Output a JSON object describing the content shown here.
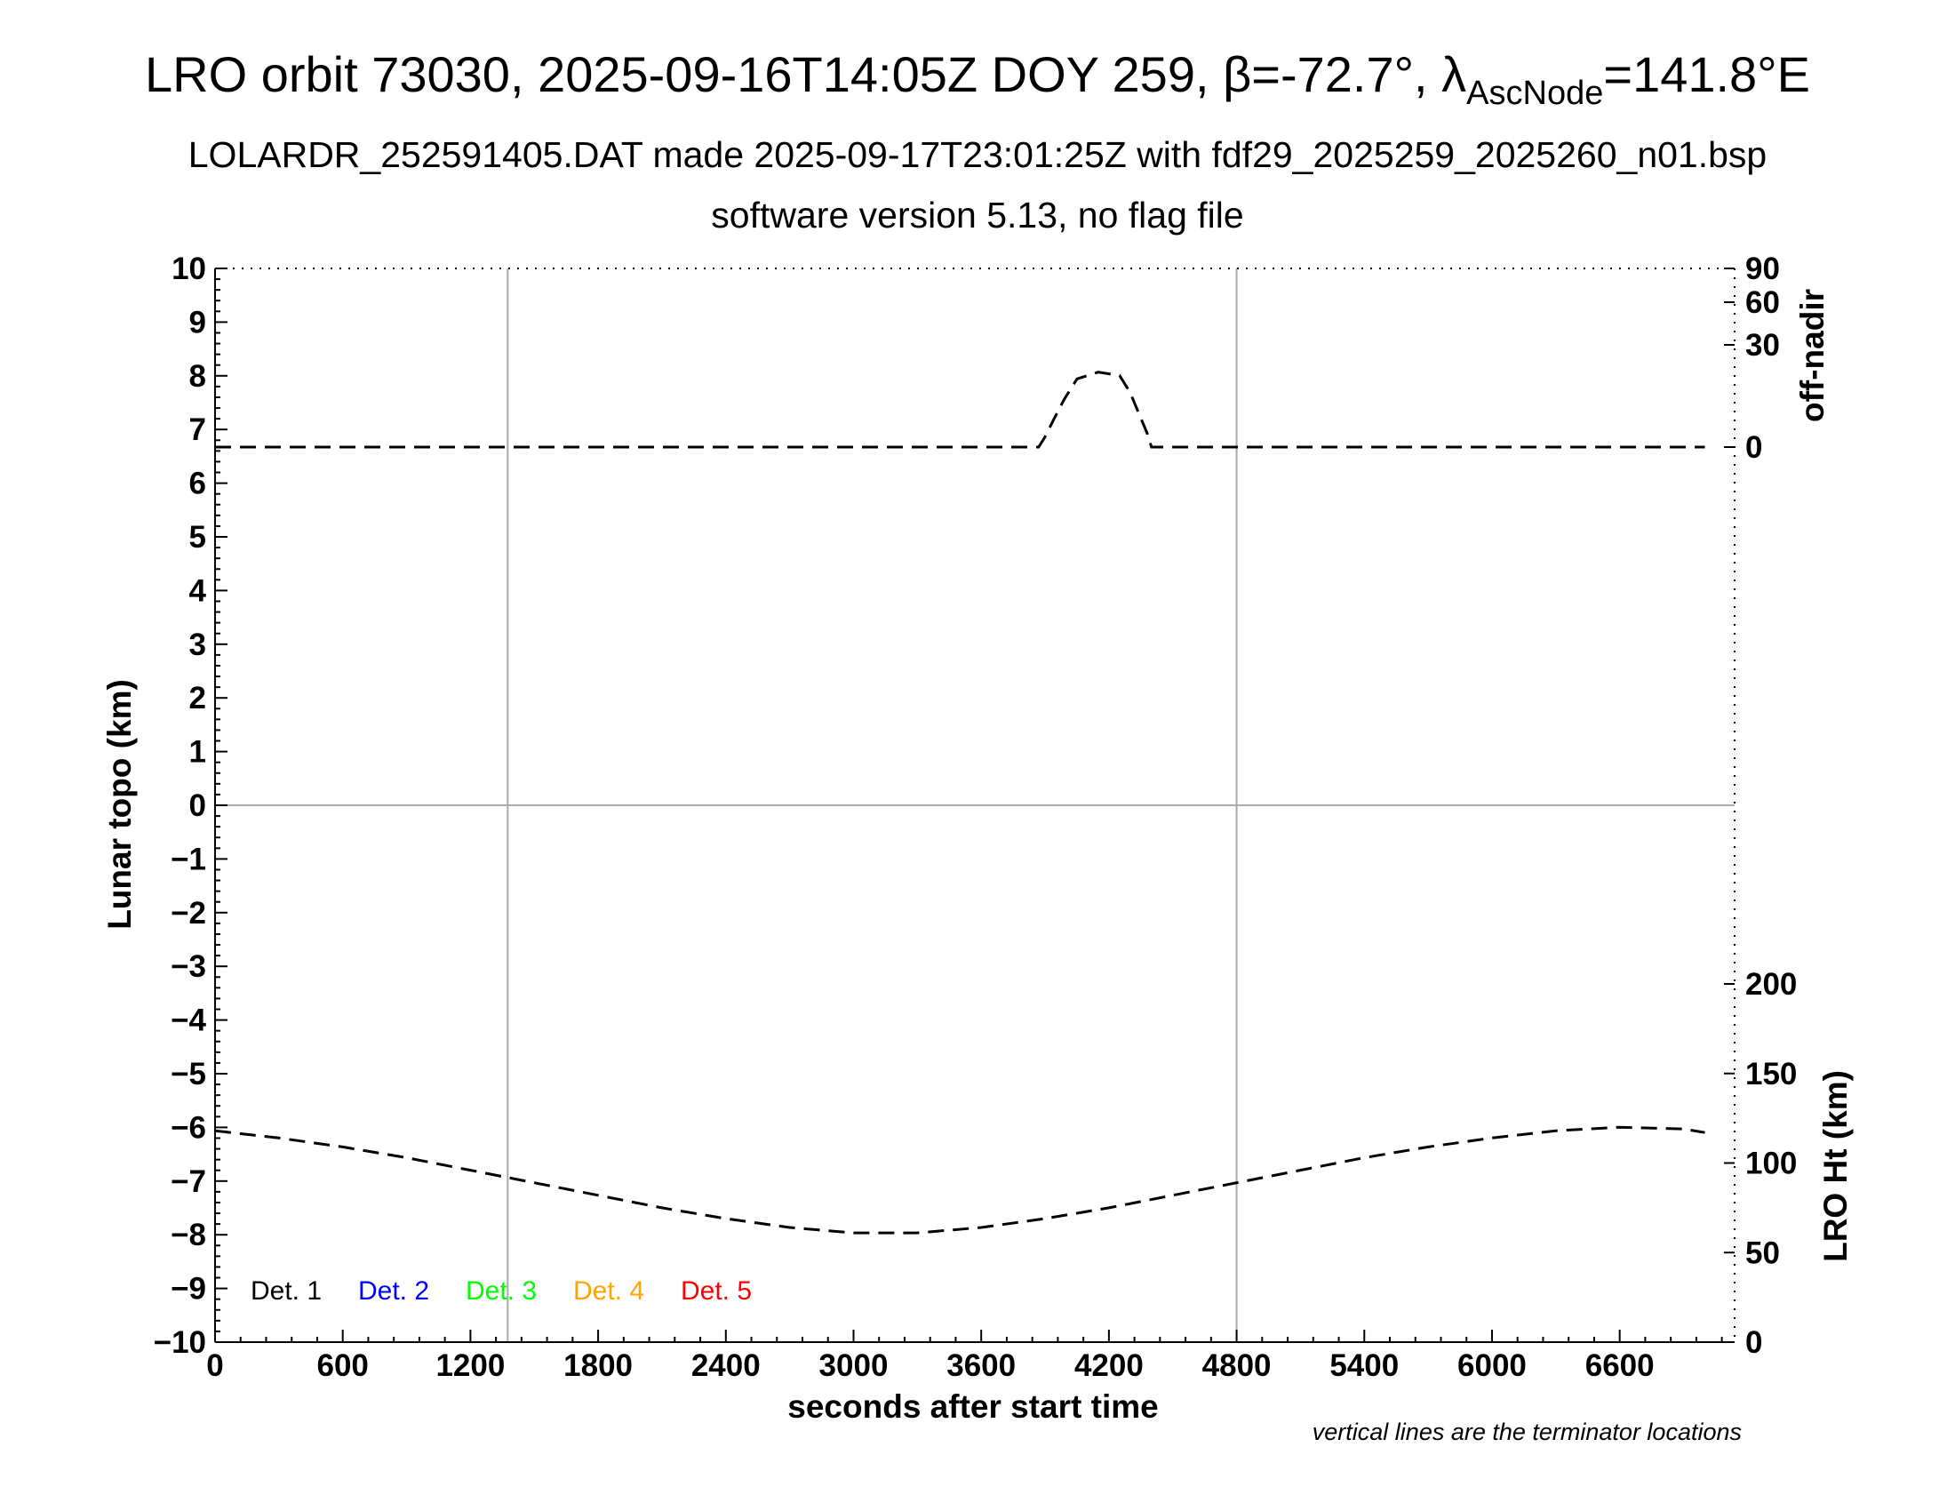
{
  "title": {
    "main": "LRO orbit 73030, 2025-09-16T14:05Z DOY 259, β=-72.7°, λ",
    "sub": "AscNode",
    "tail": "=141.8°E"
  },
  "subtitle_1": "LOLARDR_252591405.DAT made 2025-09-17T23:01:25Z with fdf29_2025259_2025260_n01.bsp",
  "subtitle_2": "software version 5.13, no flag file",
  "footnote": "vertical lines are the terminator locations",
  "chart_data": {
    "type": "line",
    "xlabel": "seconds after start time",
    "ylabel": "Lunar topo (km)",
    "ylabel_right_top": "off-nadir",
    "ylabel_right_bottom": "LRO Ht (km)",
    "xlim": [
      0,
      7140
    ],
    "ylim": [
      -10,
      10
    ],
    "x_ticks": [
      "0",
      "600",
      "1200",
      "1800",
      "2400",
      "3000",
      "3600",
      "4200",
      "4800",
      "5400",
      "6000",
      "6600"
    ],
    "x_tick_values": [
      0,
      600,
      1200,
      1800,
      2400,
      3000,
      3600,
      4200,
      4800,
      5400,
      6000,
      6600
    ],
    "y_ticks": [
      "10",
      "9",
      "8",
      "7",
      "6",
      "5",
      "4",
      "3",
      "2",
      "1",
      "0",
      "−1",
      "−2",
      "−3",
      "−4",
      "−5",
      "−6",
      "−7",
      "−8",
      "−9",
      "−10"
    ],
    "y_tick_values": [
      10,
      9,
      8,
      7,
      6,
      5,
      4,
      3,
      2,
      1,
      0,
      -1,
      -2,
      -3,
      -4,
      -5,
      -6,
      -7,
      -8,
      -9,
      -10
    ],
    "right_top_ticks": [
      "90",
      "60",
      "30",
      "0"
    ],
    "right_top_tick_values": [
      90,
      60,
      30,
      0
    ],
    "right_bottom_ticks": [
      "200",
      "150",
      "100",
      "50",
      "0"
    ],
    "right_bottom_tick_values": [
      200,
      150,
      100,
      50,
      0
    ],
    "terminator_x": [
      1375,
      4800
    ],
    "zero_line_y": 0,
    "grid": false,
    "legend": {
      "placement": "bottom-left",
      "entries": [
        {
          "label": "Det. 1",
          "color": "#000000"
        },
        {
          "label": "Det. 2",
          "color": "#0000ff"
        },
        {
          "label": "Det. 3",
          "color": "#00ff00"
        },
        {
          "label": "Det. 4",
          "color": "#ffa500"
        },
        {
          "label": "Det. 5",
          "color": "#ff0000"
        }
      ]
    },
    "series": [
      {
        "axis": "off-nadir",
        "style": "dashed",
        "x": [
          0,
          1000,
          2000,
          3000,
          3850,
          3870,
          3900,
          3940,
          3990,
          4050,
          4150,
          4250,
          4300,
          4340,
          4380,
          4400,
          4420,
          4440,
          5000,
          6000,
          7000
        ],
        "y": [
          0,
          0,
          0,
          0,
          0,
          0,
          3,
          8,
          14,
          20,
          22,
          21,
          16,
          10,
          4,
          0,
          0,
          0,
          0,
          0,
          0
        ]
      },
      {
        "axis": "LRO Ht",
        "style": "dashed",
        "x": [
          0,
          300,
          600,
          900,
          1200,
          1500,
          1800,
          2100,
          2400,
          2700,
          3000,
          3300,
          3600,
          3900,
          4200,
          4500,
          4800,
          5100,
          5400,
          5700,
          6000,
          6300,
          6600,
          6900,
          7000
        ],
        "y": [
          118,
          114,
          109,
          103,
          96,
          89,
          82,
          75,
          69,
          64,
          61,
          61,
          64,
          69,
          75,
          82,
          89,
          96,
          103,
          109,
          114,
          118,
          120,
          119,
          117
        ]
      }
    ]
  }
}
